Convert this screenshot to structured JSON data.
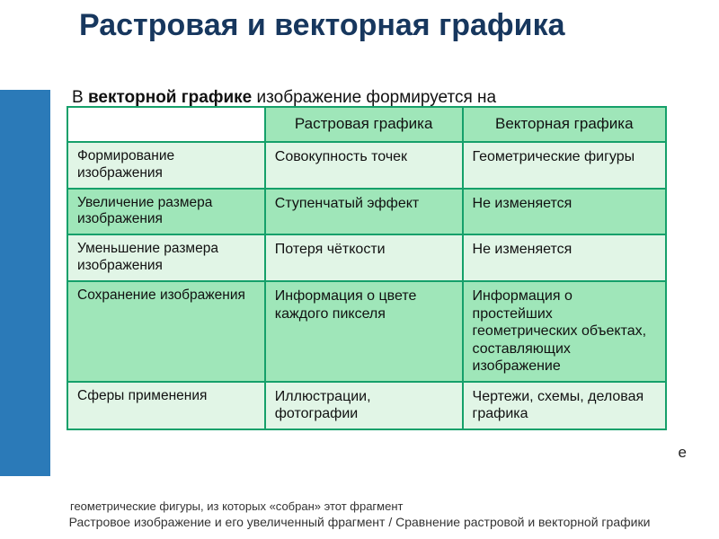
{
  "title": "Растровая и векторная графика",
  "background_text_prefix": "В ",
  "background_text_bold": "векторной графике",
  "background_text_suffix": " изображение формируется на",
  "table": {
    "headers": [
      "",
      "Растровая графика",
      "Векторная графика"
    ],
    "rows": [
      {
        "label": "Формирование изображения",
        "c1": "Совокупность точек",
        "c2": "Геометрические фигуры",
        "cls": "r-odd"
      },
      {
        "label": "Увеличение размера изображения",
        "c1": "Ступенчатый эффект",
        "c2": "Не изменяется",
        "cls": "r-even"
      },
      {
        "label": "Уменьшение размера изображения",
        "c1": "Потеря чёткости",
        "c2": "Не изменяется",
        "cls": "r-odd"
      },
      {
        "label": "Сохранение изображения",
        "c1": "Информация о цвете каждого пикселя",
        "c2": "Информация о простейших геометрических объектах, составляющих изображение",
        "cls": "r-even"
      },
      {
        "label": "Сферы применения",
        "c1": "Иллюстрации, фотографии",
        "c2": "Чертежи, схемы, деловая графика",
        "cls": "r-odd"
      }
    ]
  },
  "obscured_line_1": "геометрические фигуры, из которых «собран» этот фрагмент",
  "obscured_line_2": "Растровое изображение и его увеличенный фрагмент / Сравнение растровой и векторной графики",
  "edge_char": "е",
  "colors": {
    "title": "#17375e",
    "accent_bar": "#2b7ab8",
    "table_border": "#15a06a",
    "row_light": "#e1f5e6",
    "row_dark": "#9fe6b9"
  }
}
